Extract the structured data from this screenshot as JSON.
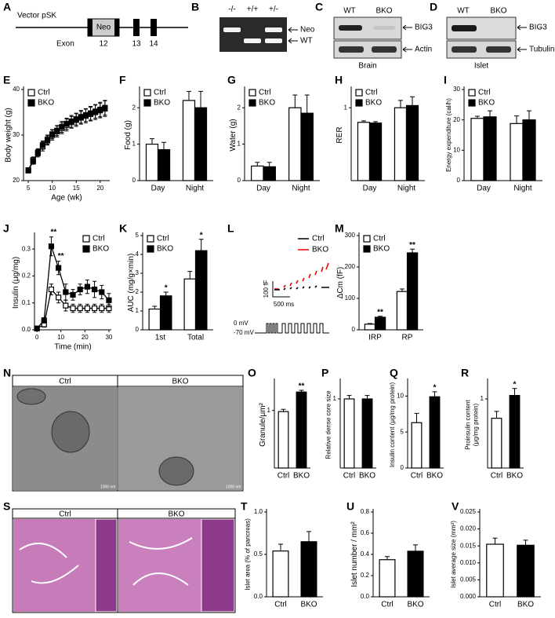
{
  "diagram_A": {
    "letter": "A",
    "vector": "Vector pSK",
    "neo": "Neo",
    "exon_label": "Exon",
    "exons": [
      "12",
      "13",
      "14"
    ]
  },
  "gels": [
    {
      "letter": "B",
      "lanes": [
        "-/-",
        "+/+",
        "+/-"
      ],
      "bands": [
        "Neo",
        "WT"
      ]
    },
    {
      "letter": "C",
      "lanes": [
        "WT",
        "BKO"
      ],
      "bands": [
        "BIG3",
        "Actin"
      ],
      "tissue": "Brain"
    },
    {
      "letter": "D",
      "lanes": [
        "WT",
        "BKO"
      ],
      "bands": [
        "BIG3",
        "Tubulin"
      ],
      "tissue": "Islet"
    }
  ],
  "trace_L": {
    "letter": "L",
    "legend": [
      "Ctrl",
      "BKO"
    ],
    "scale_y": "100 fF",
    "scale_x": "500 ms",
    "v_high": "0 mV",
    "v_low": "-70 mV"
  },
  "images": [
    {
      "letter": "N",
      "labels": [
        "Ctrl",
        "BKO"
      ],
      "scale": [
        "1000 nm",
        "1000 nm"
      ]
    },
    {
      "letter": "S",
      "labels": [
        "Ctrl",
        "BKO"
      ]
    }
  ],
  "chart_data": [
    {
      "letter": "E",
      "type": "line",
      "xlabel": "Age (wk)",
      "ylabel": "Body weight (g)",
      "x": [
        5,
        6,
        7,
        8,
        9,
        10,
        11,
        12,
        13,
        14,
        15,
        16,
        17,
        18,
        19,
        20,
        21
      ],
      "xlim": [
        4,
        22
      ],
      "xticks": [
        5,
        10,
        15,
        20
      ],
      "ylim": [
        20,
        40
      ],
      "yticks": [
        20,
        30,
        40
      ],
      "legend": "top-left",
      "series": [
        {
          "name": "Ctrl",
          "color": "#000000",
          "fill": "#ffffff",
          "values": [
            22.3,
            24.5,
            26,
            27.5,
            28.8,
            30,
            30.8,
            31.5,
            32.2,
            32.8,
            33.3,
            33.8,
            34.2,
            34.6,
            35,
            35.4,
            35.8
          ],
          "errors": [
            0.5,
            0.7,
            0.8,
            1,
            1,
            1.1,
            1.2,
            1.2,
            1.3,
            1.3,
            1.4,
            1.4,
            1.5,
            1.5,
            1.6,
            1.6,
            1.7
          ]
        },
        {
          "name": "BKO",
          "color": "#000000",
          "fill": "#000000",
          "values": [
            22.2,
            24.2,
            26.2,
            27.8,
            29,
            30.2,
            31,
            31.8,
            32.5,
            33,
            33.5,
            34,
            34.4,
            34.8,
            35.2,
            35.6,
            36
          ],
          "errors": [
            0.5,
            0.6,
            0.8,
            0.9,
            1,
            1,
            1.1,
            1.2,
            1.2,
            1.3,
            1.3,
            1.4,
            1.4,
            1.5,
            1.5,
            1.6,
            1.6
          ]
        }
      ]
    },
    {
      "letter": "F",
      "type": "bar",
      "ylabel": "Food (g)",
      "categories": [
        "Day",
        "Night"
      ],
      "ylim": [
        0,
        2.5
      ],
      "yticks": [
        0,
        1,
        2
      ],
      "legend": "top-left",
      "series": [
        {
          "name": "Ctrl",
          "color": "#ffffff",
          "values": [
            1.0,
            2.2
          ],
          "errors": [
            0.15,
            0.25
          ]
        },
        {
          "name": "BKO",
          "color": "#000000",
          "values": [
            0.85,
            2.0
          ],
          "errors": [
            0.2,
            0.45
          ]
        }
      ]
    },
    {
      "letter": "G",
      "type": "bar",
      "ylabel": "Water (g)",
      "categories": [
        "Day",
        "Night"
      ],
      "ylim": [
        0,
        2.5
      ],
      "yticks": [
        0,
        1,
        2
      ],
      "legend": "top-left",
      "series": [
        {
          "name": "Ctrl",
          "color": "#ffffff",
          "values": [
            0.4,
            2.0
          ],
          "errors": [
            0.1,
            0.35
          ]
        },
        {
          "name": "BKO",
          "color": "#000000",
          "values": [
            0.38,
            1.85
          ],
          "errors": [
            0.12,
            0.5
          ]
        }
      ]
    },
    {
      "letter": "H",
      "type": "bar",
      "ylabel": "RER",
      "categories": [
        "Day",
        "Night"
      ],
      "ylim": [
        0,
        1.25
      ],
      "yticks": [
        1
      ],
      "legend": "top-left",
      "series": [
        {
          "name": "Ctrl",
          "color": "#ffffff",
          "values": [
            0.8,
            1.0
          ],
          "errors": [
            0.02,
            0.1
          ]
        },
        {
          "name": "BKO",
          "color": "#000000",
          "values": [
            0.79,
            1.03
          ],
          "errors": [
            0.02,
            0.12
          ]
        }
      ]
    },
    {
      "letter": "I",
      "type": "bar",
      "ylabel": "Energy expenditure (cal/h)",
      "categories": [
        "Day",
        "Night"
      ],
      "ylim": [
        0,
        30
      ],
      "yticks": [
        0,
        10,
        20,
        30
      ],
      "legend": "top-left",
      "series": [
        {
          "name": "Ctrl",
          "color": "#ffffff",
          "values": [
            20.5,
            18.8
          ],
          "errors": [
            0.7,
            2.5
          ]
        },
        {
          "name": "BKO",
          "color": "#000000",
          "values": [
            21,
            20
          ],
          "errors": [
            2,
            3
          ]
        }
      ]
    },
    {
      "letter": "J",
      "type": "line",
      "xlabel": "Time (min)",
      "ylabel": "Insulin (μg/mg)",
      "x": [
        0,
        3,
        6,
        9,
        12,
        15,
        18,
        21,
        24,
        27,
        30
      ],
      "xlim": [
        -1,
        31
      ],
      "xticks": [
        0,
        10,
        20,
        30
      ],
      "ylim": [
        0,
        0.35
      ],
      "yticks": [
        {
          "value": 0,
          "label": "0.0"
        },
        0.1,
        0.2,
        0.3
      ],
      "legend": "top-right",
      "series": [
        {
          "name": "Ctrl",
          "color": "#000000",
          "fill": "#ffffff",
          "values": [
            0.005,
            0.02,
            0.15,
            0.12,
            0.09,
            0.08,
            0.08,
            0.08,
            0.08,
            0.08,
            0.08
          ],
          "errors": [
            0.003,
            0.01,
            0.02,
            0.02,
            0.02,
            0.015,
            0.015,
            0.015,
            0.015,
            0.015,
            0.015
          ]
        },
        {
          "name": "BKO",
          "color": "#000000",
          "fill": "#000000",
          "values": [
            0.005,
            0.035,
            0.31,
            0.23,
            0.14,
            0.13,
            0.15,
            0.16,
            0.15,
            0.14,
            0.11
          ],
          "errors": [
            0.003,
            0.01,
            0.035,
            0.025,
            0.03,
            0.02,
            0.02,
            0.025,
            0.03,
            0.025,
            0.025
          ],
          "significance": [
            null,
            null,
            "**",
            "**",
            null,
            null,
            null,
            null,
            null,
            null,
            null
          ]
        }
      ]
    },
    {
      "letter": "K",
      "type": "bar",
      "ylabel": "AUC (mg/g×min)",
      "categories": [
        "1st",
        "Total"
      ],
      "ylim": [
        0,
        5
      ],
      "yticks": [
        0,
        1,
        2,
        3,
        4,
        5
      ],
      "legend": "top-left",
      "series": [
        {
          "name": "Ctrl",
          "color": "#ffffff",
          "values": [
            1.1,
            2.7
          ],
          "errors": [
            0.15,
            0.4
          ]
        },
        {
          "name": "BKO",
          "color": "#000000",
          "values": [
            1.8,
            4.2
          ],
          "errors": [
            0.2,
            0.6
          ],
          "significance": [
            "*",
            "*"
          ]
        }
      ]
    },
    {
      "letter": "M",
      "type": "bar",
      "ylabel": "ΔCm (fF)",
      "categories": [
        "IRP",
        "RP"
      ],
      "ylim": [
        0,
        300
      ],
      "yticks": [
        0,
        100,
        200,
        300
      ],
      "legend": "top-left",
      "series": [
        {
          "name": "Ctrl",
          "color": "#ffffff",
          "values": [
            18,
            122
          ],
          "errors": [
            2,
            8
          ]
        },
        {
          "name": "BKO",
          "color": "#000000",
          "values": [
            40,
            245
          ],
          "errors": [
            3,
            12
          ],
          "significance": [
            "**",
            "**"
          ]
        }
      ]
    },
    {
      "letter": "O",
      "type": "bar",
      "ylabel": "Granule/μm²",
      "categories": [
        "Ctrl",
        "BKO"
      ],
      "colors": [
        "#ffffff",
        "#000000"
      ],
      "ylim": [
        0,
        1.5
      ],
      "yticks": [
        1
      ],
      "values": [
        0.98,
        1.32
      ],
      "errors": [
        0.04,
        0.03
      ],
      "significance": [
        null,
        "**"
      ]
    },
    {
      "letter": "P",
      "type": "bar",
      "ylabel": "Relative dense core size",
      "categories": [
        "Ctrl",
        "BKO"
      ],
      "colors": [
        "#ffffff",
        "#000000"
      ],
      "ylim": [
        0,
        1.25
      ],
      "yticks": [
        1
      ],
      "values": [
        1.0,
        1.0
      ],
      "errors": [
        0.05,
        0.05
      ]
    },
    {
      "letter": "Q",
      "type": "bar",
      "ylabel": "Insulin content (μg/mg protein)",
      "categories": [
        "Ctrl",
        "BKO"
      ],
      "colors": [
        "#ffffff",
        "#000000"
      ],
      "ylim": [
        0,
        12
      ],
      "yticks": [
        0,
        5,
        10
      ],
      "values": [
        6.3,
        9.9
      ],
      "errors": [
        1.3,
        0.7
      ],
      "significance": [
        null,
        "*"
      ]
    },
    {
      "letter": "R",
      "type": "bar",
      "ylabel": [
        "Proinsulin content",
        "(μg/mg protein)"
      ],
      "categories": [
        "Ctrl",
        "BKO"
      ],
      "colors": [
        "#ffffff",
        "#000000"
      ],
      "ylim": [
        0,
        1.25
      ],
      "yticks": [
        1
      ],
      "values": [
        0.72,
        1.05
      ],
      "errors": [
        0.1,
        0.1
      ],
      "significance": [
        null,
        "*"
      ]
    },
    {
      "letter": "T",
      "type": "bar",
      "ylabel": "Islet area (% of pancreas)",
      "categories": [
        "Ctrl",
        "BKO"
      ],
      "colors": [
        "#ffffff",
        "#000000"
      ],
      "ylim": [
        0,
        1.0
      ],
      "yticks": [
        {
          "value": 0,
          "label": "0.0"
        },
        0.5,
        {
          "value": 1,
          "label": "1.0"
        }
      ],
      "values": [
        0.54,
        0.65
      ],
      "errors": [
        0.08,
        0.12
      ]
    },
    {
      "letter": "U",
      "type": "bar",
      "ylabel": "Islet number / mm²",
      "categories": [
        "Ctrl",
        "BKO"
      ],
      "colors": [
        "#ffffff",
        "#000000"
      ],
      "ylim": [
        0,
        0.8
      ],
      "yticks": [
        {
          "value": 0,
          "label": "0.0"
        },
        0.2,
        0.4,
        0.6,
        0.8
      ],
      "values": [
        0.35,
        0.43
      ],
      "errors": [
        0.03,
        0.06
      ]
    },
    {
      "letter": "V",
      "type": "bar",
      "ylabel": "Islet average size (mm²)",
      "categories": [
        "Ctrl",
        "BKO"
      ],
      "colors": [
        "#ffffff",
        "#000000"
      ],
      "ylim": [
        0,
        0.025
      ],
      "yticks": [
        {
          "value": 0,
          "label": "0.000"
        },
        {
          "value": 0.005,
          "label": "0.005"
        },
        {
          "value": 0.01,
          "label": "0.010"
        },
        {
          "value": 0.015,
          "label": "0.015"
        },
        {
          "value": 0.02,
          "label": "0.020"
        },
        {
          "value": 0.025,
          "label": "0.025"
        }
      ],
      "values": [
        0.0155,
        0.0152
      ],
      "errors": [
        0.0018,
        0.0015
      ]
    }
  ]
}
